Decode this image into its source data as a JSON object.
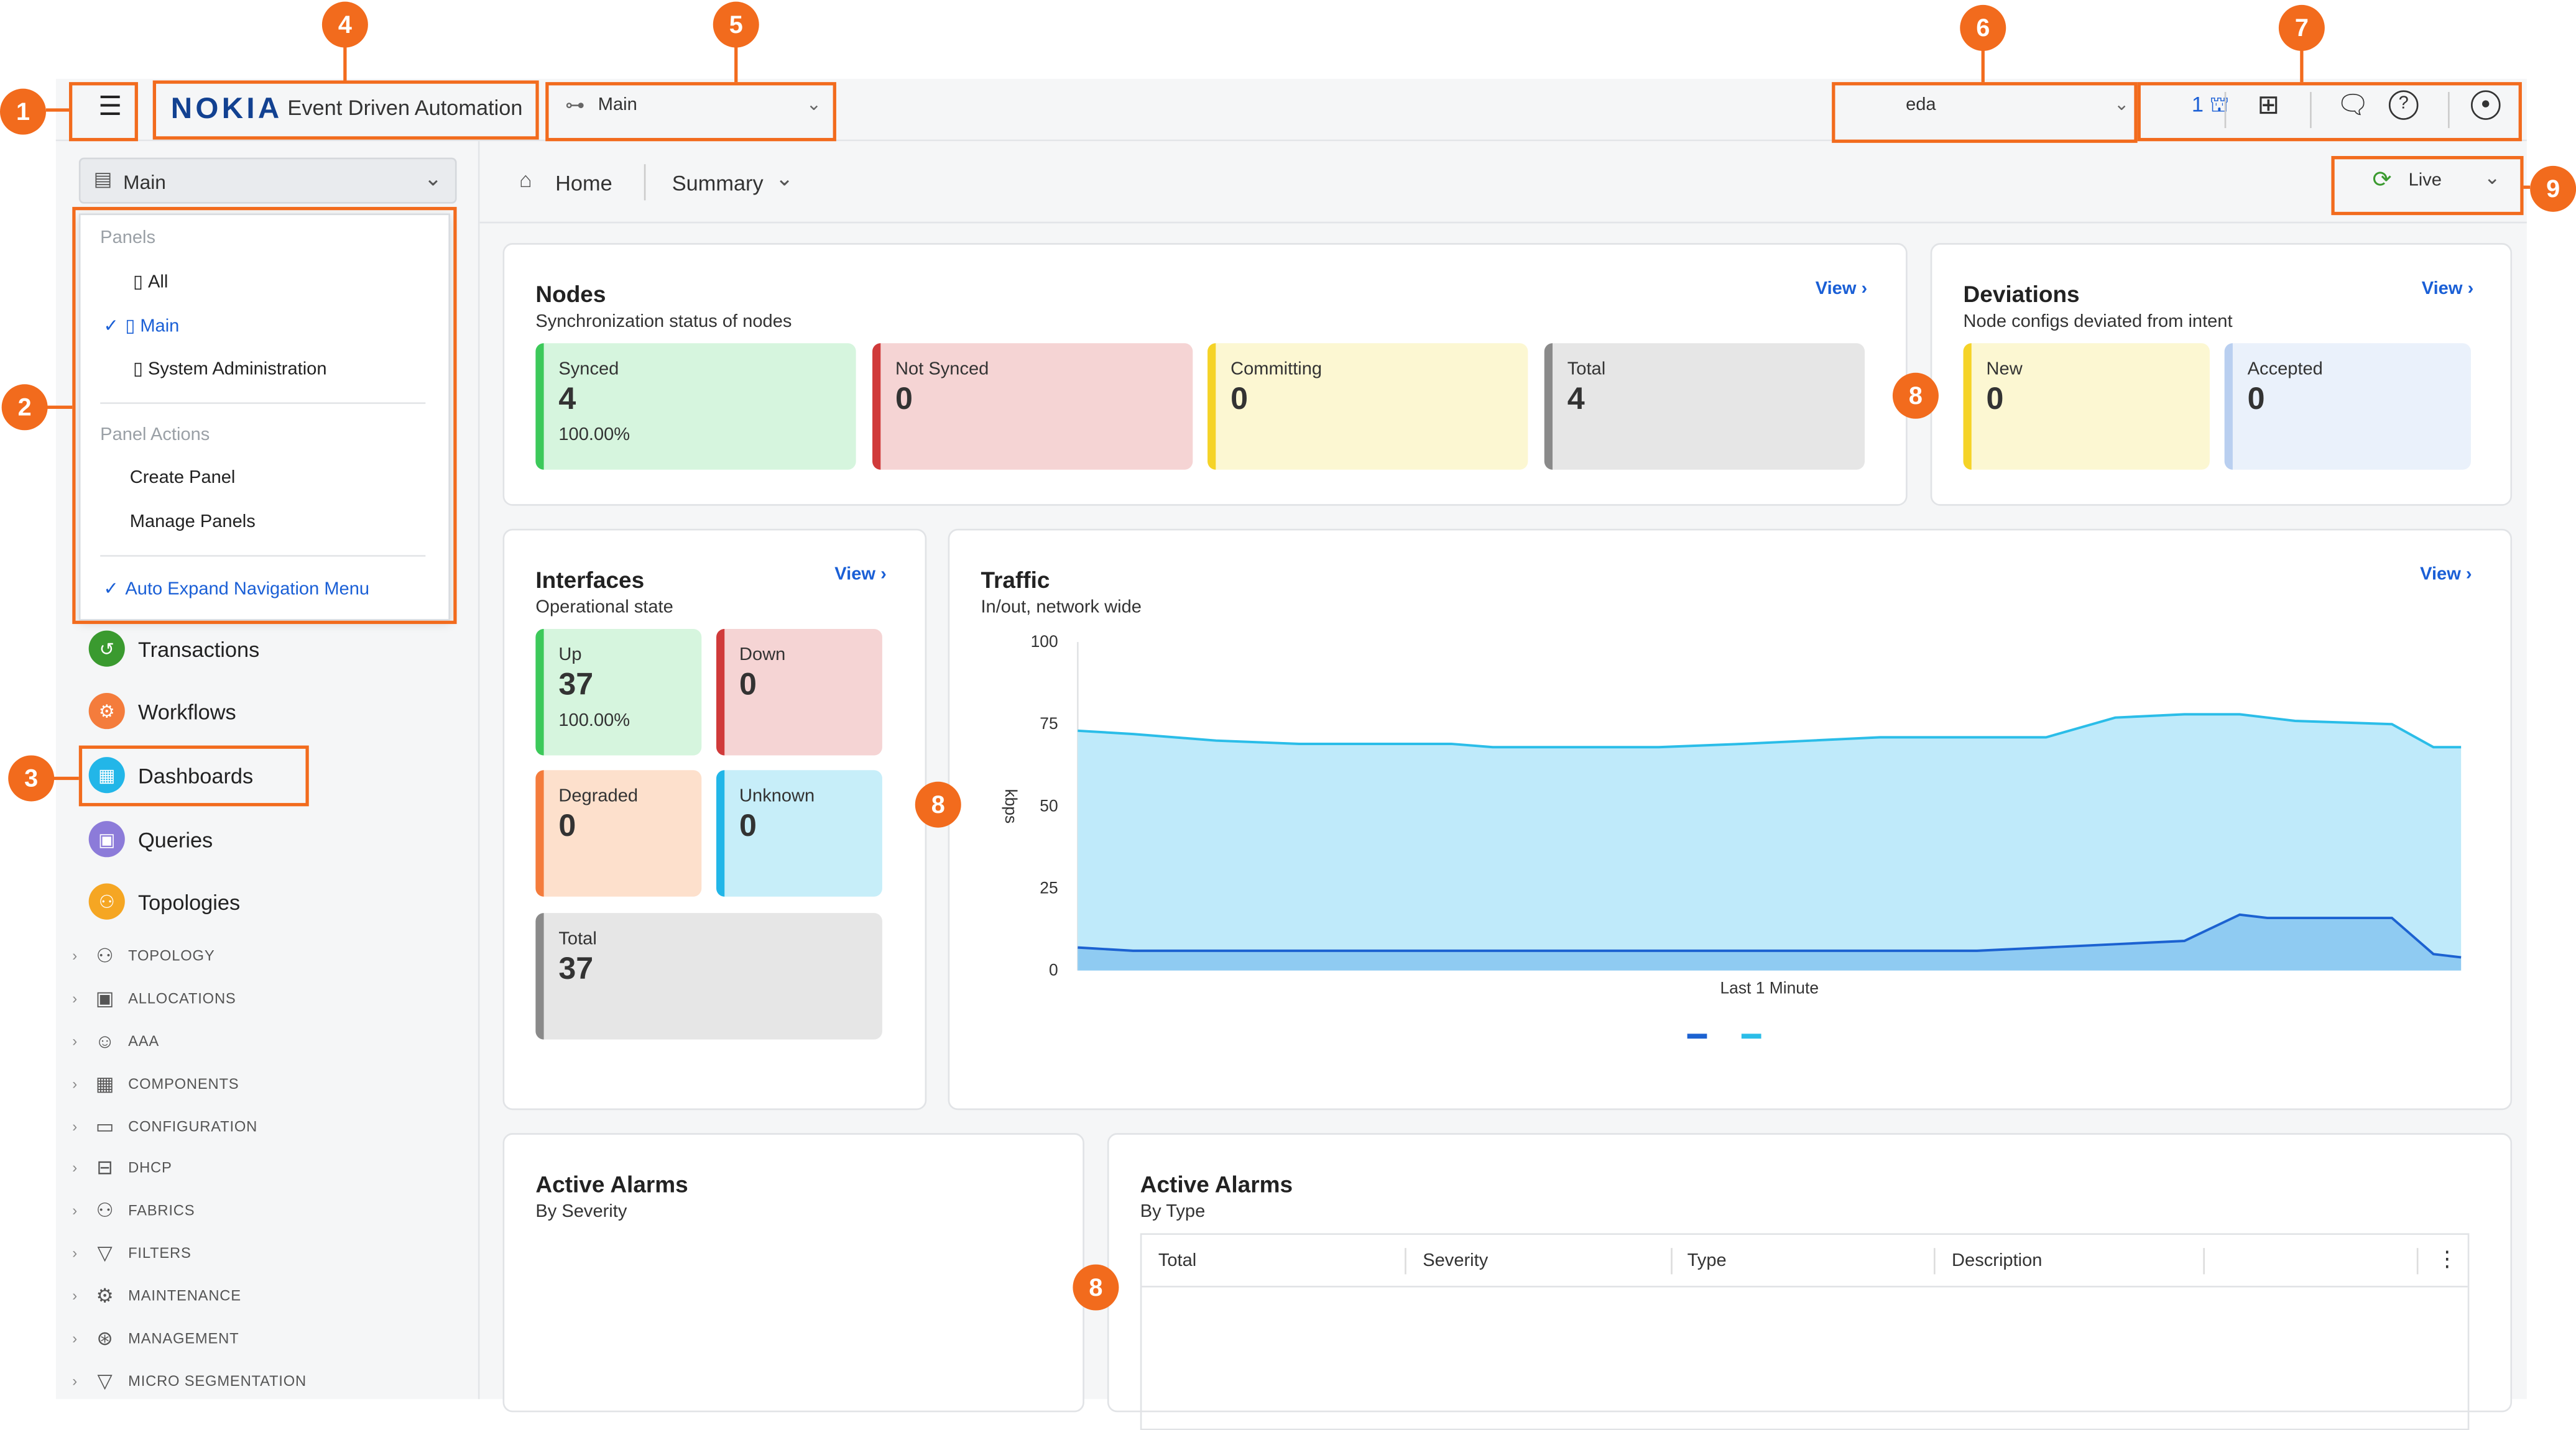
{
  "app": {
    "brand": "NOKIA",
    "title": "Event Driven Automation"
  },
  "topbar": {
    "workspace_select": "Main",
    "namespace_select": "eda",
    "transaction_count": "1"
  },
  "sidebar": {
    "panel_select": "Main",
    "menu": {
      "panels_header": "Panels",
      "panels": [
        "All",
        "Main",
        "System Administration"
      ],
      "actions_header": "Panel Actions",
      "actions": [
        "Create Panel",
        "Manage Panels"
      ],
      "auto_expand": "Auto Expand Navigation Menu"
    },
    "items": [
      {
        "label": "Transactions",
        "color": "#3a9a2f"
      },
      {
        "label": "Workflows",
        "color": "#f47c3c"
      },
      {
        "label": "Dashboards",
        "color": "#22b6e8"
      },
      {
        "label": "Queries",
        "color": "#8c7bd9"
      },
      {
        "label": "Topologies",
        "color": "#f5a623"
      }
    ],
    "groups": [
      "TOPOLOGY",
      "ALLOCATIONS",
      "AAA",
      "COMPONENTS",
      "CONFIGURATION",
      "DHCP",
      "FABRICS",
      "FILTERS",
      "MAINTENANCE",
      "MANAGEMENT",
      "MICRO SEGMENTATION"
    ]
  },
  "breadcrumb": {
    "home": "Home",
    "summary": "Summary",
    "live": "Live"
  },
  "nodes": {
    "title": "Nodes",
    "subtitle": "Synchronization status of nodes",
    "view": "View",
    "tiles": [
      {
        "label": "Synced",
        "value": "4",
        "pct": "100.00%"
      },
      {
        "label": "Not Synced",
        "value": "0"
      },
      {
        "label": "Committing",
        "value": "0"
      },
      {
        "label": "Total",
        "value": "4"
      }
    ]
  },
  "deviations": {
    "title": "Deviations",
    "subtitle": "Node configs deviated from intent",
    "view": "View",
    "tiles": [
      {
        "label": "New",
        "value": "0"
      },
      {
        "label": "Accepted",
        "value": "0"
      }
    ]
  },
  "interfaces": {
    "title": "Interfaces",
    "subtitle": "Operational state",
    "view": "View",
    "tiles": [
      {
        "label": "Up",
        "value": "37",
        "pct": "100.00%"
      },
      {
        "label": "Down",
        "value": "0"
      },
      {
        "label": "Degraded",
        "value": "0"
      },
      {
        "label": "Unknown",
        "value": "0"
      },
      {
        "label": "Total",
        "value": "37"
      }
    ]
  },
  "traffic": {
    "title": "Traffic",
    "subtitle": "In/out, network wide",
    "view": "View",
    "ylabel": "kbps",
    "xlabel": "Last 1 Minute",
    "yticks": [
      "100",
      "75",
      "50",
      "25",
      "0"
    ]
  },
  "chart_data": {
    "type": "area",
    "title": "Traffic",
    "xlabel": "Last 1 Minute",
    "ylabel": "kbps",
    "ylim": [
      0,
      100
    ],
    "x": [
      0,
      0.04,
      0.1,
      0.16,
      0.22,
      0.27,
      0.3,
      0.36,
      0.42,
      0.48,
      0.53,
      0.58,
      0.65,
      0.7,
      0.75,
      0.8,
      0.84,
      0.86,
      0.88,
      0.95,
      0.98,
      1.0
    ],
    "series": [
      {
        "values": [
          73,
          72,
          70,
          69,
          69,
          69,
          68,
          68,
          68,
          69,
          70,
          71,
          71,
          71,
          77,
          78,
          78,
          77,
          76,
          75,
          68,
          68
        ]
      },
      {
        "values": [
          7,
          6,
          6,
          6,
          6,
          6,
          6,
          6,
          6,
          6,
          6,
          6,
          6,
          7,
          8,
          9,
          17,
          16,
          16,
          16,
          5,
          4
        ]
      }
    ]
  },
  "alarms_severity": {
    "title": "Active Alarms",
    "subtitle": "By Severity"
  },
  "alarms_type": {
    "title": "Active Alarms",
    "subtitle": "By Type",
    "columns": [
      "Total",
      "Severity",
      "Type",
      "Description"
    ]
  },
  "badges": [
    "1",
    "2",
    "3",
    "4",
    "5",
    "6",
    "7",
    "8",
    "9"
  ],
  "colors": {
    "accent": "#f26b1d",
    "link": "#1a5fd6",
    "nokia_blue": "#124191"
  }
}
